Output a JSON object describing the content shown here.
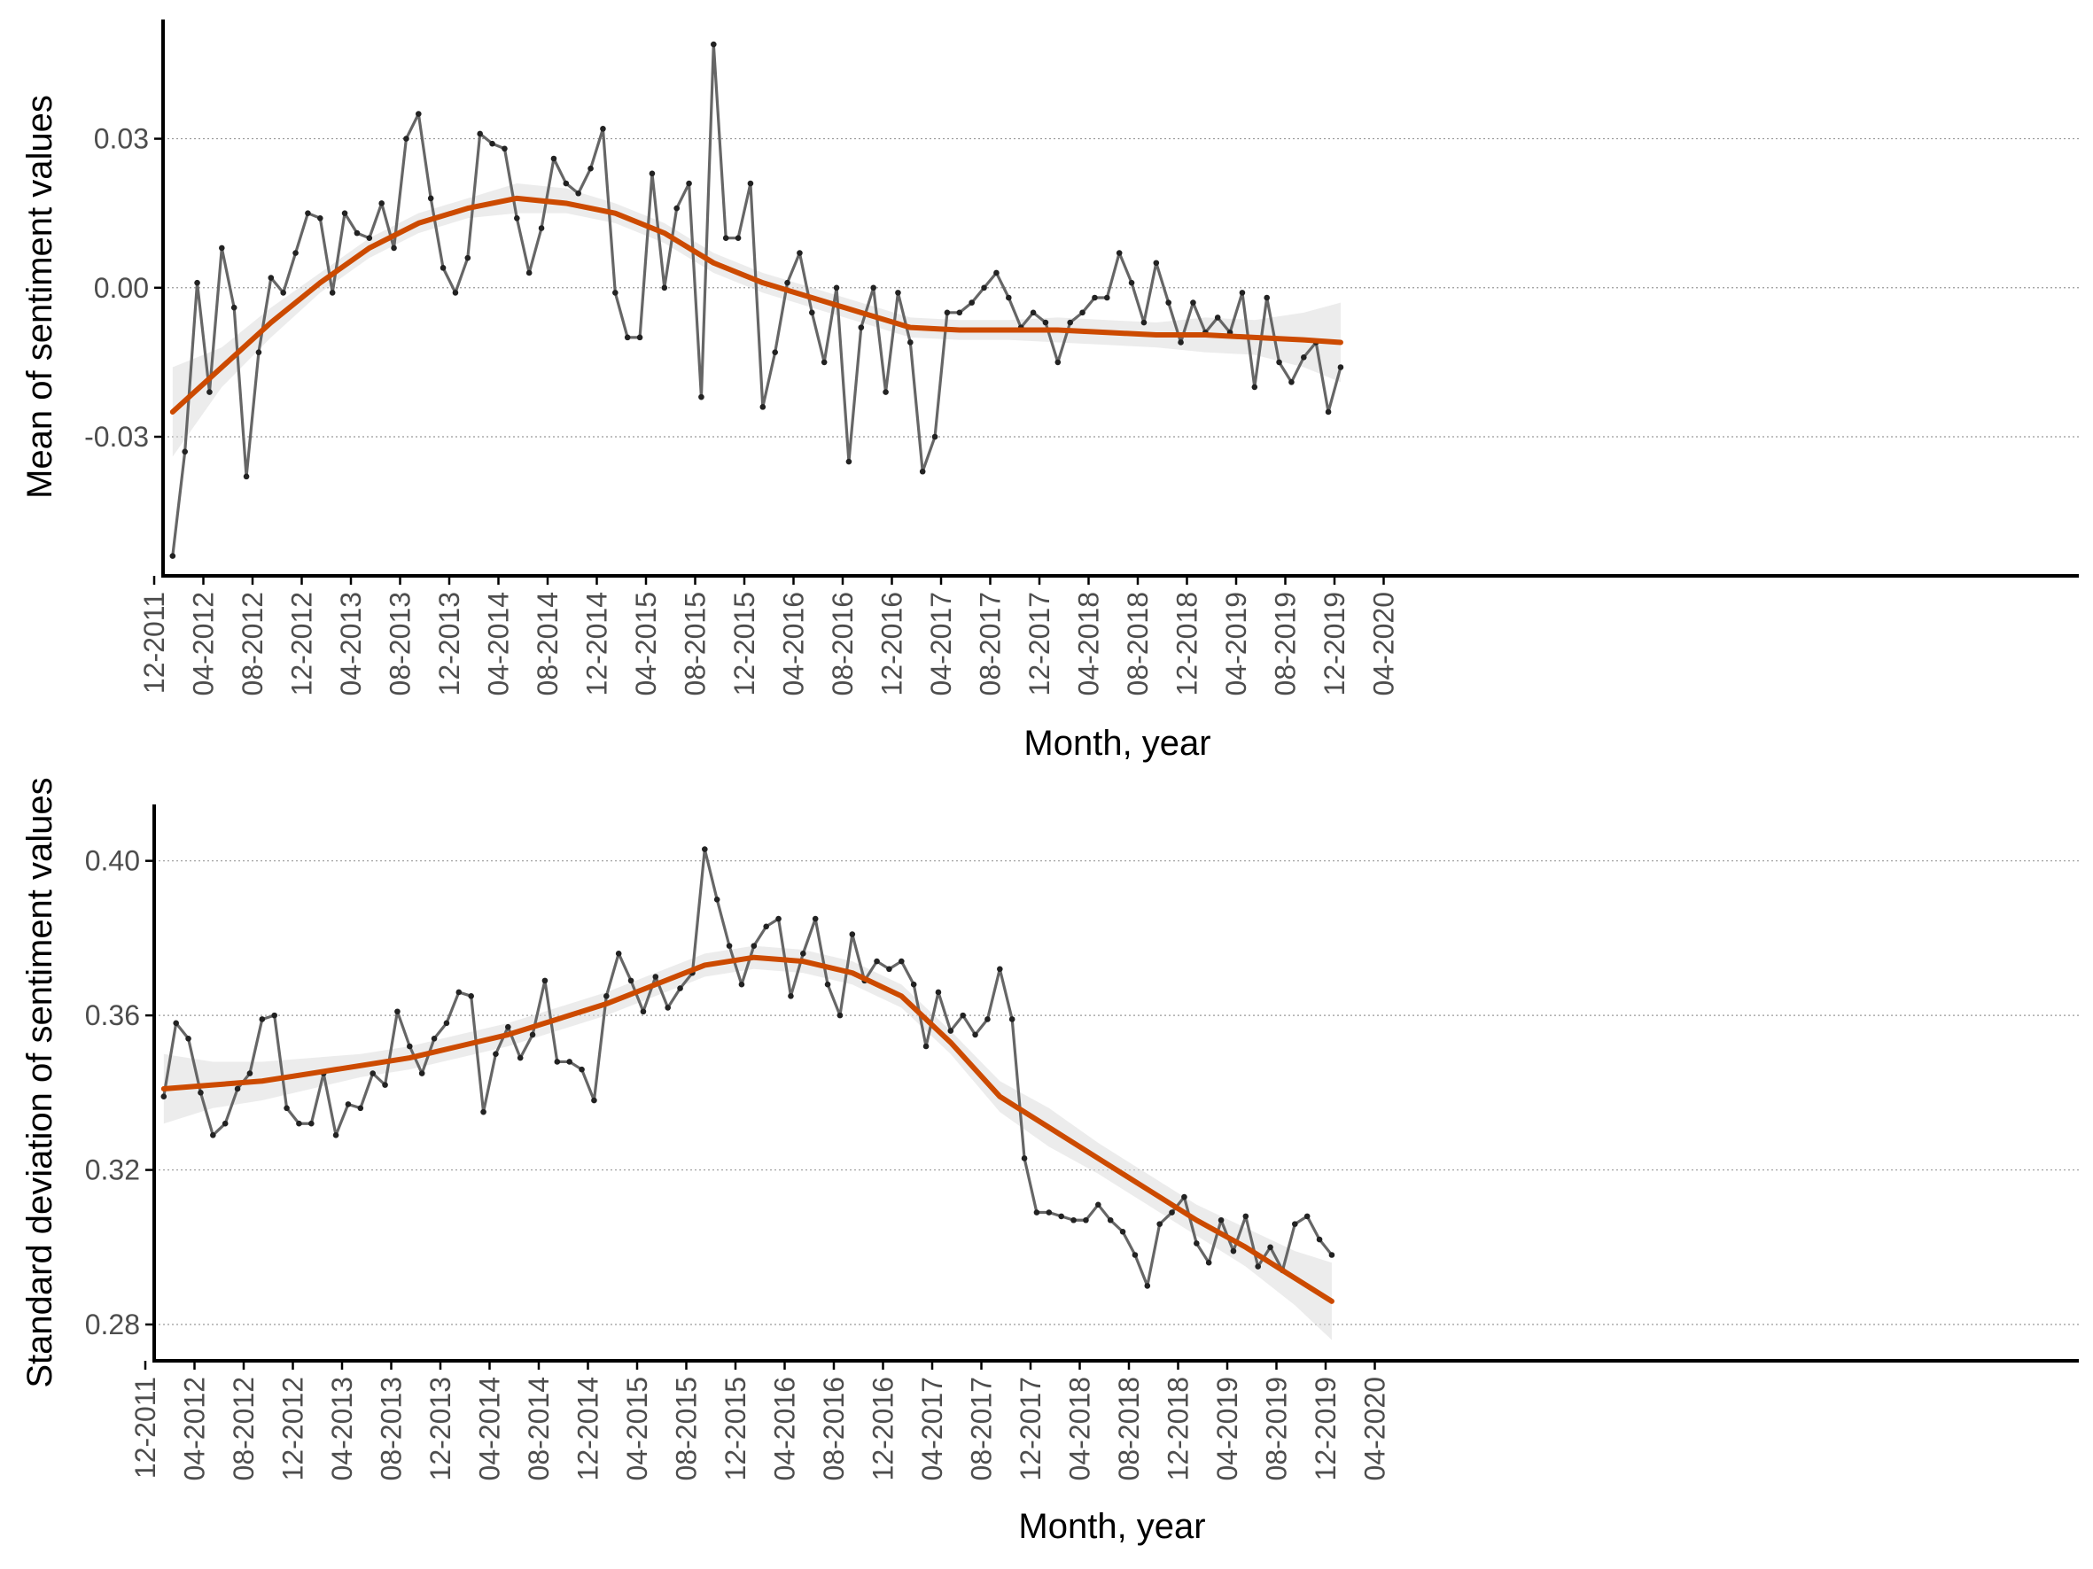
{
  "chart_data": [
    {
      "type": "line",
      "ylabel": "Mean of sentiment values",
      "xlabel": "Month, year",
      "x_ticks": [
        "12-2011",
        "04-2012",
        "08-2012",
        "12-2012",
        "04-2013",
        "08-2013",
        "12-2013",
        "04-2014",
        "08-2014",
        "12-2014",
        "04-2015",
        "08-2015",
        "12-2015",
        "04-2016",
        "08-2016",
        "12-2016",
        "04-2017",
        "08-2017",
        "12-2017",
        "04-2018",
        "08-2018",
        "12-2018",
        "04-2019",
        "08-2019",
        "12-2019",
        "04-2020"
      ],
      "y_ticks": [
        {
          "value": 0.03,
          "label": "0.03"
        },
        {
          "value": 0.0,
          "label": "0.00"
        },
        {
          "value": -0.03,
          "label": "-0.03"
        }
      ],
      "ylim": [
        -0.058,
        0.054
      ],
      "xlim": [
        "12-2011",
        "04-2020"
      ],
      "grid": "horizontal dotted",
      "colors": {
        "raw": "#666666",
        "smooth": "#cc4a00",
        "band": "#d9d9d9"
      },
      "series": [
        {
          "values": [
            -0.054,
            -0.033,
            0.001,
            -0.021,
            0.008,
            -0.004,
            -0.038,
            -0.013,
            0.002,
            -0.001,
            0.007,
            0.015,
            0.014,
            -0.001,
            0.015,
            0.011,
            0.01,
            0.017,
            0.008,
            0.03,
            0.035,
            0.018,
            0.004,
            -0.001,
            0.006,
            0.031,
            0.029,
            0.028,
            0.014,
            0.003,
            0.012,
            0.026,
            0.021,
            0.019,
            0.024,
            0.032,
            -0.001,
            -0.01,
            -0.01,
            0.023,
            0.0,
            0.016,
            0.021,
            -0.022,
            0.049,
            0.01,
            0.01,
            0.021,
            -0.024,
            -0.013,
            0.001,
            0.007,
            -0.005,
            -0.015,
            0.0,
            -0.035,
            -0.008,
            0.0,
            -0.021,
            -0.001,
            -0.011,
            -0.037,
            -0.03,
            -0.005,
            -0.005,
            -0.003,
            0.0,
            0.003,
            -0.002,
            -0.008,
            -0.005,
            -0.007,
            -0.015,
            -0.007,
            -0.005,
            -0.002,
            -0.002,
            0.007,
            0.001,
            -0.007,
            0.005,
            -0.003,
            -0.011,
            -0.003,
            -0.009,
            -0.006,
            -0.009,
            -0.001,
            -0.02,
            -0.002,
            -0.015,
            -0.019,
            -0.014,
            -0.011,
            -0.025,
            -0.016
          ]
        },
        {
          "smooth_x": [
            0,
            4,
            8,
            12,
            16,
            20,
            24,
            28,
            32,
            36,
            40,
            44,
            48,
            52,
            56,
            60,
            64,
            68,
            72,
            76,
            80,
            84,
            88,
            92,
            95
          ],
          "smooth": [
            -0.025,
            -0.016,
            -0.007,
            0.001,
            0.008,
            0.013,
            0.016,
            0.018,
            0.017,
            0.015,
            0.011,
            0.005,
            0.001,
            -0.002,
            -0.005,
            -0.008,
            -0.0085,
            -0.0085,
            -0.0085,
            -0.009,
            -0.0095,
            -0.0095,
            -0.01,
            -0.0105,
            -0.011
          ],
          "band_lower": [
            -0.034,
            -0.02,
            -0.01,
            -0.001,
            0.006,
            0.011,
            0.014,
            0.015,
            0.015,
            0.013,
            0.009,
            0.003,
            -0.001,
            -0.004,
            -0.007,
            -0.01,
            -0.0105,
            -0.0105,
            -0.011,
            -0.0115,
            -0.012,
            -0.013,
            -0.0135,
            -0.016,
            -0.019
          ],
          "band_upper": [
            -0.016,
            -0.012,
            -0.004,
            0.003,
            0.01,
            0.015,
            0.018,
            0.021,
            0.02,
            0.017,
            0.013,
            0.007,
            0.003,
            0.0,
            -0.003,
            -0.006,
            -0.0065,
            -0.0065,
            -0.006,
            -0.0065,
            -0.007,
            -0.006,
            -0.0065,
            -0.005,
            -0.003
          ]
        }
      ]
    },
    {
      "type": "line",
      "ylabel": "Standard deviation of sentiment values",
      "xlabel": "Month, year",
      "x_ticks": [
        "12-2011",
        "04-2012",
        "08-2012",
        "12-2012",
        "04-2013",
        "08-2013",
        "12-2013",
        "04-2014",
        "08-2014",
        "12-2014",
        "04-2015",
        "08-2015",
        "12-2015",
        "04-2016",
        "08-2016",
        "12-2016",
        "04-2017",
        "08-2017",
        "12-2017",
        "04-2018",
        "08-2018",
        "12-2018",
        "04-2019",
        "08-2019",
        "12-2019",
        "04-2020"
      ],
      "y_ticks": [
        {
          "value": 0.4,
          "label": "0.40"
        },
        {
          "value": 0.36,
          "label": "0.36"
        },
        {
          "value": 0.32,
          "label": "0.32"
        },
        {
          "value": 0.28,
          "label": "0.28"
        }
      ],
      "ylim": [
        0.2706,
        0.4146
      ],
      "xlim": [
        "12-2011",
        "04-2020"
      ],
      "grid": "horizontal dotted",
      "colors": {
        "raw": "#666666",
        "smooth": "#cc4a00",
        "band": "#d9d9d9"
      },
      "series": [
        {
          "values": [
            0.339,
            0.358,
            0.354,
            0.34,
            0.329,
            0.332,
            0.341,
            0.345,
            0.359,
            0.36,
            0.336,
            0.332,
            0.332,
            0.345,
            0.329,
            0.337,
            0.336,
            0.345,
            0.342,
            0.361,
            0.352,
            0.345,
            0.354,
            0.358,
            0.366,
            0.365,
            0.335,
            0.35,
            0.357,
            0.349,
            0.355,
            0.369,
            0.348,
            0.348,
            0.346,
            0.338,
            0.365,
            0.376,
            0.369,
            0.361,
            0.37,
            0.362,
            0.367,
            0.371,
            0.403,
            0.39,
            0.378,
            0.368,
            0.378,
            0.383,
            0.385,
            0.365,
            0.376,
            0.385,
            0.368,
            0.36,
            0.381,
            0.369,
            0.374,
            0.372,
            0.374,
            0.368,
            0.352,
            0.366,
            0.356,
            0.36,
            0.355,
            0.359,
            0.372,
            0.359,
            0.323,
            0.309,
            0.309,
            0.308,
            0.307,
            0.307,
            0.311,
            0.307,
            0.304,
            0.298,
            0.29,
            0.306,
            0.309,
            0.313,
            0.301,
            0.296,
            0.307,
            0.299,
            0.308,
            0.295,
            0.3,
            0.294,
            0.306,
            0.308,
            0.302,
            0.298
          ]
        },
        {
          "smooth_x": [
            0,
            4,
            8,
            12,
            16,
            20,
            24,
            28,
            32,
            36,
            40,
            44,
            48,
            52,
            56,
            60,
            64,
            68,
            72,
            76,
            80,
            84,
            88,
            92,
            95
          ],
          "smooth": [
            0.341,
            0.342,
            0.343,
            0.345,
            0.347,
            0.349,
            0.352,
            0.355,
            0.359,
            0.363,
            0.368,
            0.373,
            0.375,
            0.374,
            0.371,
            0.365,
            0.353,
            0.339,
            0.331,
            0.323,
            0.315,
            0.307,
            0.3,
            0.292,
            0.286
          ],
          "band_lower": [
            0.332,
            0.336,
            0.338,
            0.341,
            0.344,
            0.346,
            0.349,
            0.352,
            0.356,
            0.36,
            0.365,
            0.37,
            0.372,
            0.371,
            0.368,
            0.362,
            0.35,
            0.335,
            0.326,
            0.319,
            0.311,
            0.303,
            0.295,
            0.285,
            0.276
          ],
          "band_upper": [
            0.35,
            0.348,
            0.348,
            0.349,
            0.35,
            0.352,
            0.355,
            0.358,
            0.362,
            0.366,
            0.371,
            0.376,
            0.378,
            0.377,
            0.374,
            0.368,
            0.356,
            0.343,
            0.336,
            0.327,
            0.319,
            0.311,
            0.305,
            0.299,
            0.296
          ]
        }
      ]
    }
  ]
}
